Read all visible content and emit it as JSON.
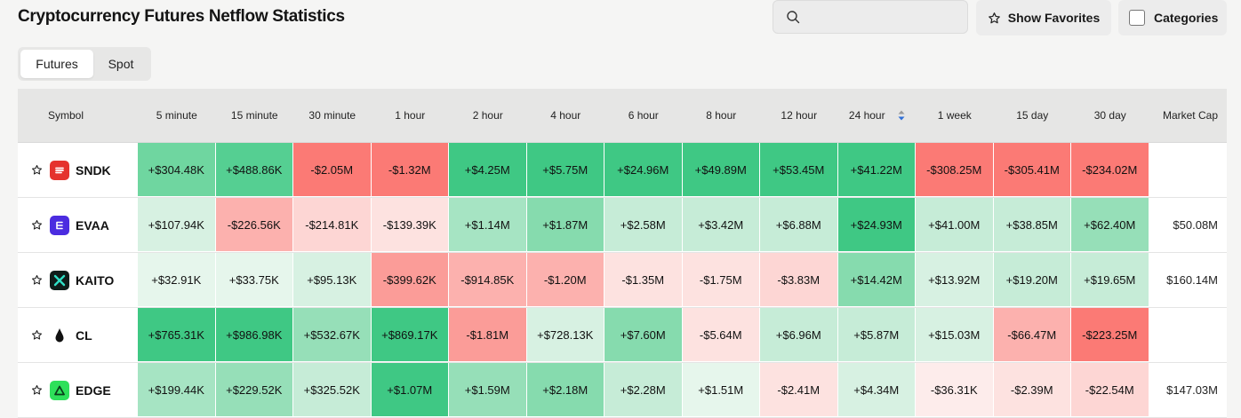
{
  "header": {
    "title": "Cryptocurrency Futures Netflow Statistics",
    "search_placeholder": "",
    "favorites_label": "Show Favorites",
    "categories_label": "Categories"
  },
  "tabs": [
    {
      "label": "Futures",
      "active": true
    },
    {
      "label": "Spot",
      "active": false
    }
  ],
  "table": {
    "columns": [
      "Symbol",
      "5 minute",
      "15 minute",
      "30 minute",
      "1 hour",
      "2 hour",
      "4 hour",
      "6 hour",
      "8 hour",
      "12 hour",
      "24 hour",
      "1 week",
      "15 day",
      "30 day",
      "Market Cap"
    ],
    "sorted_column": "24 hour",
    "rows": [
      {
        "symbol": "SNDK",
        "logo": "sndk-logo",
        "logo_color": "#e5322d",
        "values": [
          "+$304.48K",
          "+$488.86K",
          "-$2.05M",
          "-$1.32M",
          "+$4.25M",
          "+$5.75M",
          "+$24.96M",
          "+$49.89M",
          "+$53.45M",
          "+$41.22M",
          "-$308.25M",
          "-$305.41M",
          "-$234.02M"
        ],
        "colors": [
          "#6fd6a0",
          "#55cf92",
          "#fb7a75",
          "#fb7a75",
          "#3fc884",
          "#3fc884",
          "#3fc884",
          "#3fc884",
          "#3fc884",
          "#3fc884",
          "#fb7a75",
          "#fb7a75",
          "#fb7a75"
        ],
        "market_cap": ""
      },
      {
        "symbol": "EVAA",
        "logo": "evaa-logo",
        "logo_color": "#4b2ce0",
        "values": [
          "+$107.94K",
          "-$226.56K",
          "-$214.81K",
          "-$139.39K",
          "+$1.14M",
          "+$1.87M",
          "+$2.58M",
          "+$3.42M",
          "+$6.88M",
          "+$24.93M",
          "+$41.00M",
          "+$38.85M",
          "+$62.40M"
        ],
        "colors": [
          "#d7f1e2",
          "#fcb1ae",
          "#fdd6d4",
          "#fde2e0",
          "#a6e4c3",
          "#86dbae",
          "#c6ecd7",
          "#c6ecd7",
          "#c6ecd7",
          "#3fc884",
          "#c6ecd7",
          "#c6ecd7",
          "#96dfb8"
        ],
        "market_cap": "$50.08M"
      },
      {
        "symbol": "KAITO",
        "logo": "kaito-logo",
        "logo_color": "#0f1d1a",
        "values": [
          "+$32.91K",
          "+$33.75K",
          "+$95.13K",
          "-$399.62K",
          "-$914.85K",
          "-$1.20M",
          "-$1.35M",
          "-$1.75M",
          "-$3.83M",
          "+$14.42M",
          "+$13.92M",
          "+$19.20M",
          "+$19.65M"
        ],
        "colors": [
          "#e6f6ec",
          "#e6f6ec",
          "#d7f1e2",
          "#fb9c98",
          "#fcb1ae",
          "#fcb1ae",
          "#fde2e0",
          "#fde2e0",
          "#fdd6d4",
          "#86dbae",
          "#d7f1e2",
          "#c6ecd7",
          "#c6ecd7"
        ],
        "market_cap": "$160.14M"
      },
      {
        "symbol": "CL",
        "logo": "cl-logo",
        "logo_color": "#ffffff",
        "values": [
          "+$765.31K",
          "+$986.98K",
          "+$532.67K",
          "+$869.17K",
          "-$1.81M",
          "+$728.13K",
          "+$7.60M",
          "-$5.64M",
          "+$6.96M",
          "+$5.87M",
          "+$15.03M",
          "-$66.47M",
          "-$223.25M"
        ],
        "colors": [
          "#3fc884",
          "#3fc884",
          "#96dfb8",
          "#3fc884",
          "#fb9c98",
          "#d7f1e2",
          "#86dbae",
          "#fde2e0",
          "#c6ecd7",
          "#c6ecd7",
          "#d7f1e2",
          "#fcb1ae",
          "#fb7a75"
        ],
        "market_cap": ""
      },
      {
        "symbol": "EDGE",
        "logo": "edge-logo",
        "logo_color": "#2ee05a",
        "values": [
          "+$199.44K",
          "+$229.52K",
          "+$325.52K",
          "+$1.07M",
          "+$1.59M",
          "+$2.18M",
          "+$2.28M",
          "+$1.51M",
          "-$2.41M",
          "+$4.34M",
          "-$36.31K",
          "-$2.39M",
          "-$22.54M"
        ],
        "colors": [
          "#a6e4c3",
          "#96dfb8",
          "#c6ecd7",
          "#3fc884",
          "#96dfb8",
          "#86dbae",
          "#c6ecd7",
          "#e6f6ec",
          "#fde2e0",
          "#d7f1e2",
          "#fdeceb",
          "#fde2e0",
          "#fdd6d4"
        ],
        "market_cap": "$147.03M"
      }
    ]
  }
}
